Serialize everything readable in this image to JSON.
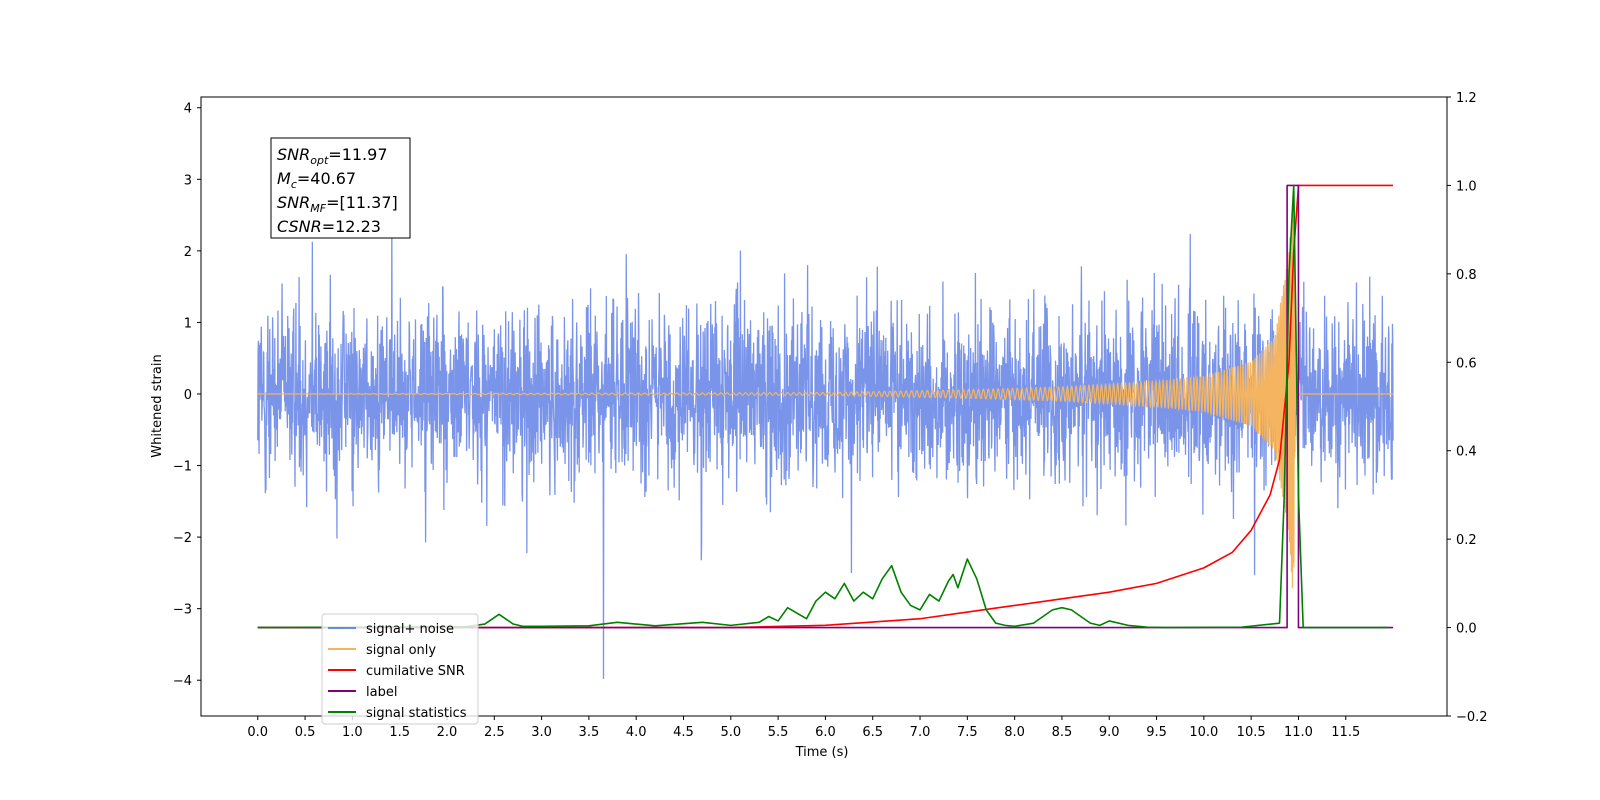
{
  "chart_data": {
    "type": "line",
    "xlabel": "Time (s)",
    "ylabel": "Whitened strain",
    "xlim": [
      -0.6,
      12.57
    ],
    "ylim": [
      -4.5,
      4.15
    ],
    "y2lim": [
      -0.2,
      1.2
    ],
    "x_ticks": [
      "0.0",
      "0.5",
      "1.0",
      "1.5",
      "2.0",
      "2.5",
      "3.0",
      "3.5",
      "4.0",
      "4.5",
      "5.0",
      "5.5",
      "6.0",
      "6.5",
      "7.0",
      "7.5",
      "8.0",
      "8.5",
      "9.0",
      "9.5",
      "10.0",
      "10.5",
      "11.0",
      "11.5"
    ],
    "y_ticks": [
      "−4",
      "−3",
      "−2",
      "−1",
      "0",
      "1",
      "2",
      "3",
      "4"
    ],
    "y2_ticks": [
      "−0.2",
      "0.0",
      "0.2",
      "0.4",
      "0.6",
      "0.8",
      "1.0",
      "1.2"
    ],
    "grid": false,
    "legend_position": "lower-left",
    "annotation": [
      {
        "base": "SNR",
        "sub": "opt",
        "rest": "=11.97"
      },
      {
        "base": "M",
        "sub": "c",
        "rest": "=40.67"
      },
      {
        "base": "SNR",
        "sub": "MF",
        "rest": "=[11.37]"
      },
      {
        "base": "CSNR",
        "sub": "",
        "rest": "=12.23"
      }
    ],
    "series": [
      {
        "name": "signal+ noise",
        "color": "#6a88e6",
        "axis": "left",
        "description": "whitened noise, amplitude ~±2.5 with spikes to ~±3.7, from 0 to 12 s"
      },
      {
        "name": "signal only",
        "color": "#f5b560",
        "axis": "left",
        "description": "chirp rising from 0 amplitude to ~3 at ~10.95 s, then 0",
        "envelope_points": [
          [
            0.0,
            0.0
          ],
          [
            6.0,
            0.02
          ],
          [
            7.5,
            0.06
          ],
          [
            8.5,
            0.1
          ],
          [
            9.5,
            0.18
          ],
          [
            10.0,
            0.25
          ],
          [
            10.5,
            0.45
          ],
          [
            10.75,
            0.8
          ],
          [
            10.9,
            2.0
          ],
          [
            10.95,
            3.0
          ],
          [
            10.97,
            0.0
          ]
        ]
      },
      {
        "name": "cumilative SNR",
        "color": "#ff0000",
        "axis": "right",
        "x": [
          0.0,
          5.0,
          6.0,
          7.0,
          7.5,
          8.0,
          8.5,
          9.0,
          9.5,
          10.0,
          10.3,
          10.5,
          10.7,
          10.8,
          10.9,
          10.95,
          11.0,
          12.0
        ],
        "y": [
          0.0,
          0.0,
          0.005,
          0.02,
          0.035,
          0.05,
          0.065,
          0.08,
          0.1,
          0.135,
          0.17,
          0.22,
          0.3,
          0.38,
          0.6,
          0.85,
          1.0,
          1.0
        ]
      },
      {
        "name": "label",
        "color": "#800080",
        "axis": "right",
        "x": [
          0.0,
          10.88,
          10.88,
          11.0,
          11.0,
          12.0
        ],
        "y": [
          0.0,
          0.0,
          1.0,
          1.0,
          0.0,
          0.0
        ]
      },
      {
        "name": "signal statistics",
        "color": "#008000",
        "axis": "right",
        "x": [
          0.0,
          2.2,
          2.4,
          2.55,
          2.7,
          2.8,
          3.0,
          3.5,
          3.8,
          4.2,
          4.7,
          5.0,
          5.3,
          5.4,
          5.5,
          5.6,
          5.8,
          5.9,
          6.0,
          6.1,
          6.2,
          6.3,
          6.4,
          6.5,
          6.6,
          6.7,
          6.8,
          6.9,
          7.0,
          7.1,
          7.2,
          7.3,
          7.35,
          7.4,
          7.5,
          7.6,
          7.7,
          7.8,
          7.9,
          8.0,
          8.2,
          8.4,
          8.5,
          8.6,
          8.8,
          8.9,
          9.0,
          9.2,
          9.4,
          9.6,
          10.4,
          10.8,
          10.85,
          10.9,
          10.95,
          11.0,
          11.05,
          11.1,
          11.4,
          11.95
        ],
        "y": [
          0.0,
          0.002,
          0.008,
          0.03,
          0.008,
          0.003,
          0.003,
          0.004,
          0.012,
          0.004,
          0.012,
          0.005,
          0.012,
          0.025,
          0.015,
          0.045,
          0.02,
          0.06,
          0.08,
          0.065,
          0.1,
          0.06,
          0.08,
          0.065,
          0.11,
          0.14,
          0.08,
          0.05,
          0.04,
          0.075,
          0.06,
          0.105,
          0.12,
          0.09,
          0.155,
          0.11,
          0.04,
          0.01,
          0.005,
          0.003,
          0.01,
          0.04,
          0.045,
          0.04,
          0.01,
          0.005,
          0.015,
          0.005,
          0.001,
          0.0,
          0.001,
          0.01,
          0.3,
          0.8,
          1.0,
          0.3,
          0.0,
          0.0,
          0.0,
          0.0
        ]
      }
    ]
  }
}
